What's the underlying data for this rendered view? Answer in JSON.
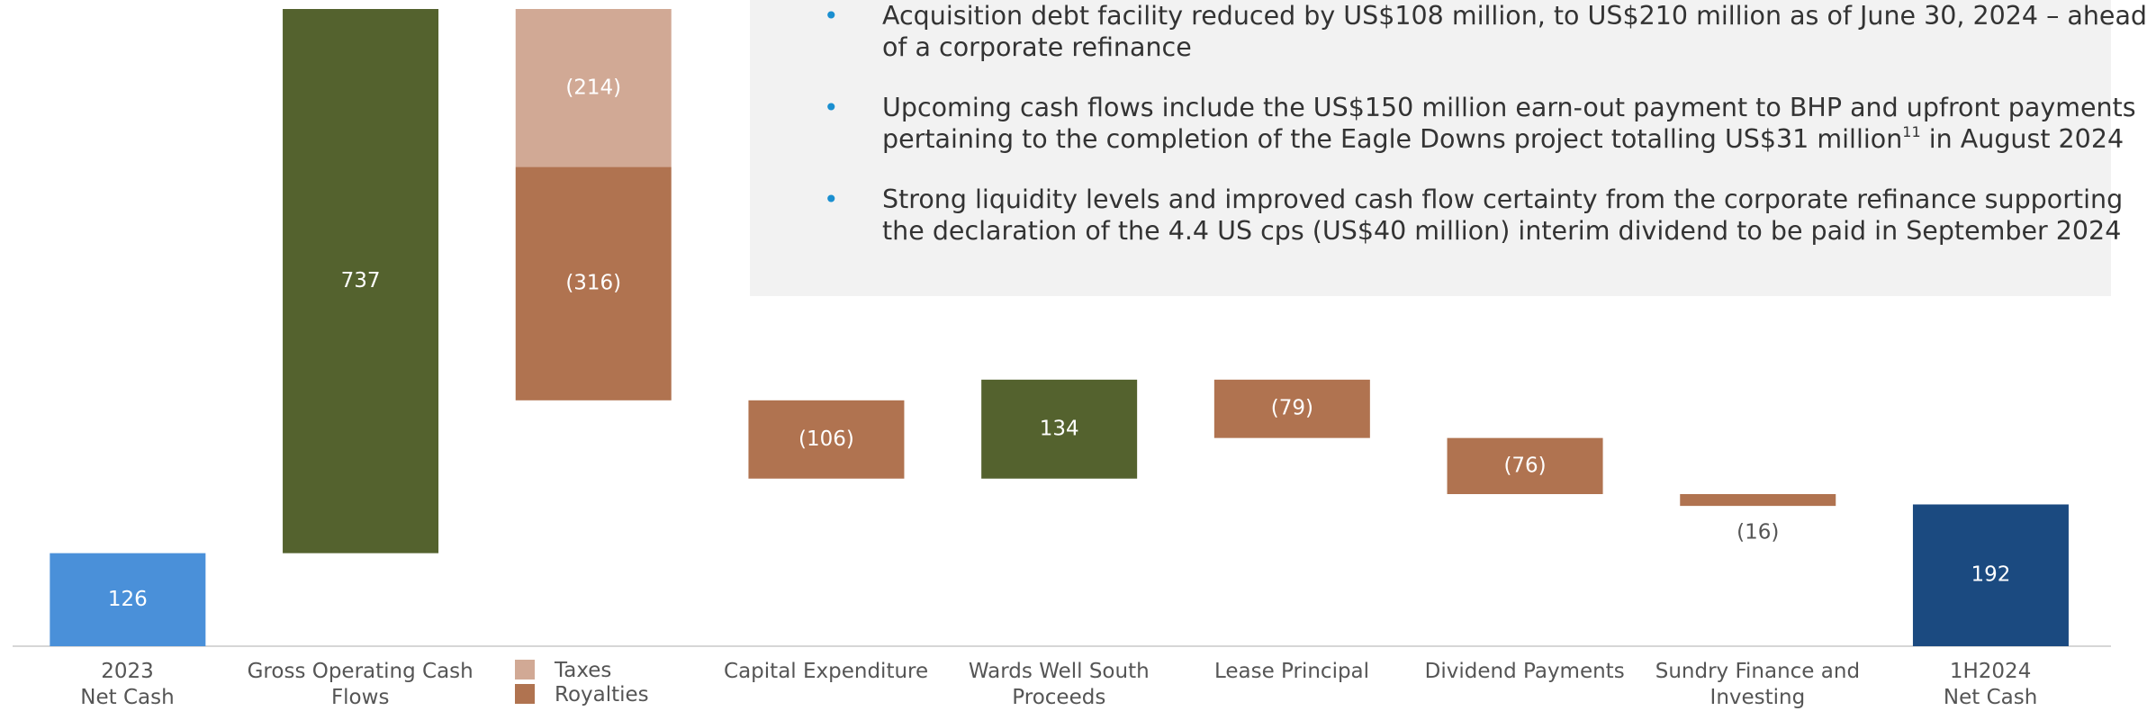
{
  "chart_data": {
    "type": "waterfall",
    "categories": [
      "2023\nNet Cash",
      "Gross Operating Cash\nFlows",
      null,
      "Capital Expenditure",
      "Wards Well South\nProceeds",
      "Lease Principal",
      "Dividend Payments",
      "Sundry Finance and\nInvesting",
      "1H2024\nNet Cash"
    ],
    "measure": [
      "absolute",
      "relative",
      "relative",
      "relative",
      "relative",
      "relative",
      "relative",
      "relative",
      "absolute"
    ],
    "values": [
      126,
      737,
      null,
      -106,
      134,
      -79,
      -76,
      -16,
      192
    ],
    "value_labels": [
      "126",
      "737",
      null,
      "(106)",
      "134",
      "(79)",
      "(76)",
      "(16)",
      "192"
    ],
    "colors": [
      "#4a90d9",
      "#54622e",
      null,
      "#b07350",
      "#54622e",
      "#b07350",
      "#b07350",
      "#b07350",
      "#1b4a80"
    ],
    "series": [
      {
        "name": "Taxes",
        "color": "#d1a995",
        "values": [
          null,
          null,
          -214,
          null,
          null,
          null,
          null,
          null,
          null
        ],
        "value_labels": [
          null,
          null,
          "(214)",
          null,
          null,
          null,
          null,
          null,
          null
        ]
      },
      {
        "name": "Royalties",
        "color": "#b07350",
        "values": [
          null,
          null,
          -316,
          null,
          null,
          null,
          null,
          null,
          null
        ],
        "value_labels": [
          null,
          null,
          "(316)",
          null,
          null,
          null,
          null,
          null,
          null
        ]
      }
    ],
    "ylim": [
      0,
      863
    ],
    "annotations": [
      {
        "lines": [
          "Acquisition debt facility reduced by US$108 million, to US$210 million as of June 30, 2024 – ahead",
          "of a corporate refinance"
        ]
      },
      {
        "lines": [
          "Upcoming cash flows include the US$150 million earn-out payment to BHP and upfront payments",
          "pertaining to the completion of the Eagle Downs project totalling US$31 million"
        ],
        "superscript": "11",
        "tail": " in August 2024"
      },
      {
        "lines": [
          "Strong liquidity levels and improved cash flow certainty from the corporate refinance supporting",
          "the declaration of the 4.4 US cps (US$40 million) interim dividend to be paid in September 2024"
        ]
      }
    ]
  }
}
